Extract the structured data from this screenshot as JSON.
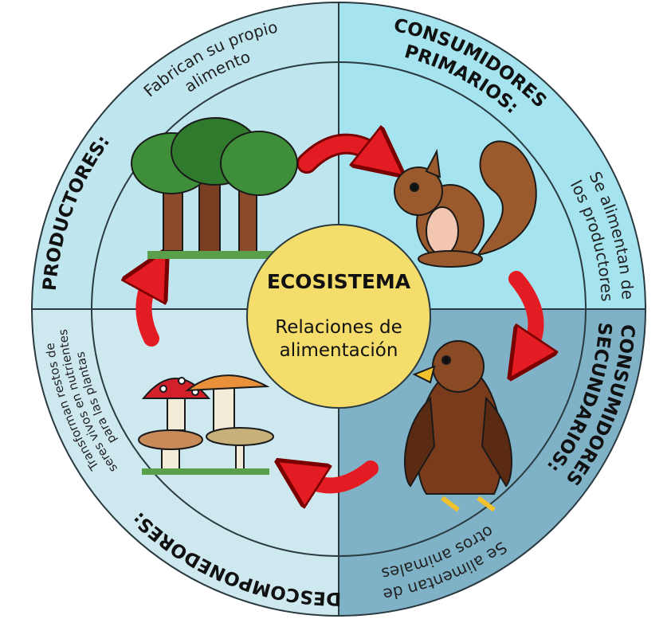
{
  "center": {
    "title": "ECOSISTEMA",
    "subtitle": [
      "Relaciones de",
      "alimentación"
    ]
  },
  "sections": [
    {
      "title": [
        "PRODUCTORES:"
      ],
      "description": [
        "Fabrican su propio",
        "alimento"
      ]
    },
    {
      "title": [
        "CONSUMIDORES",
        "PRIMARIOS:"
      ],
      "description": [
        "Se alimentan de",
        "los productores"
      ]
    },
    {
      "title": [
        "CONSUMIDORES",
        "SECUNDARIOS:"
      ],
      "description": [
        "Se alimentan de",
        "otros animales"
      ]
    },
    {
      "title": [
        "DESCOMPONEDORES:"
      ],
      "description": [
        "Transforman restos de",
        "seres vivos en nutrientes",
        "para las plantas"
      ]
    }
  ]
}
